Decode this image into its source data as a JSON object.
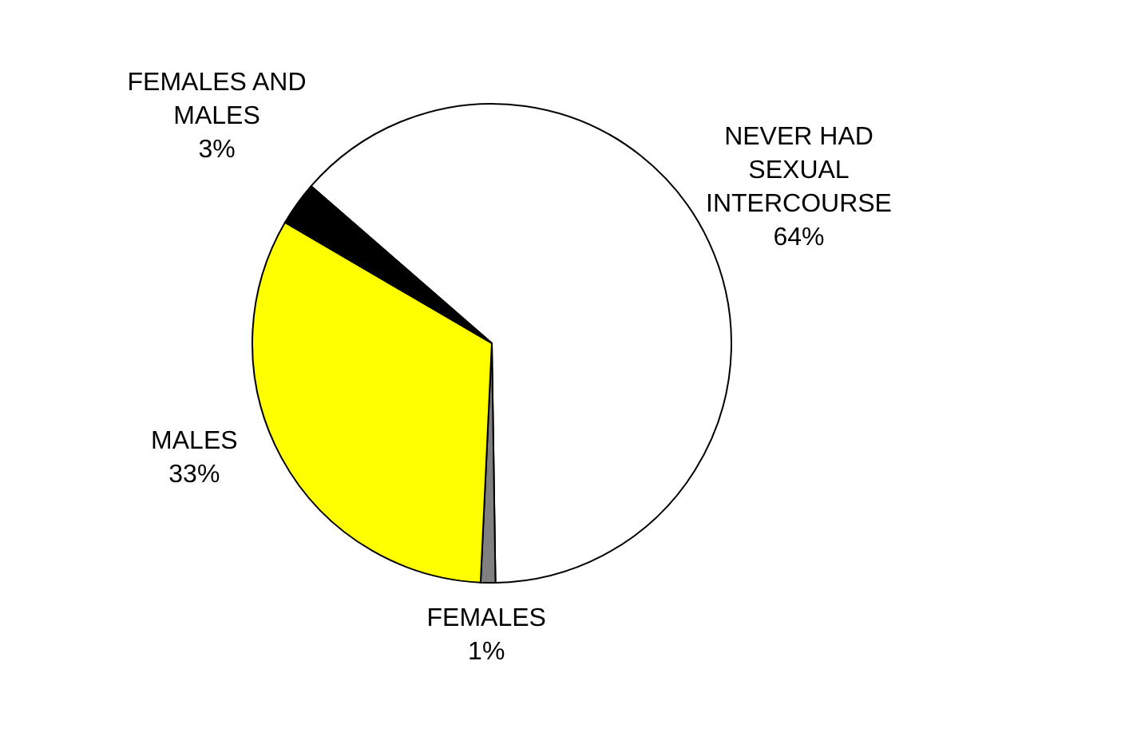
{
  "chart_data": {
    "type": "pie",
    "categories": [
      "NEVER HAD SEXUAL INTERCOURSE",
      "FEMALES",
      "MALES",
      "FEMALES AND MALES"
    ],
    "values": [
      64,
      1,
      33,
      3
    ],
    "colors": [
      "#ffffff",
      "#808080",
      "#ffff00",
      "#000000"
    ],
    "value_labels": [
      "64%",
      "1%",
      "33%",
      "3%"
    ]
  }
}
